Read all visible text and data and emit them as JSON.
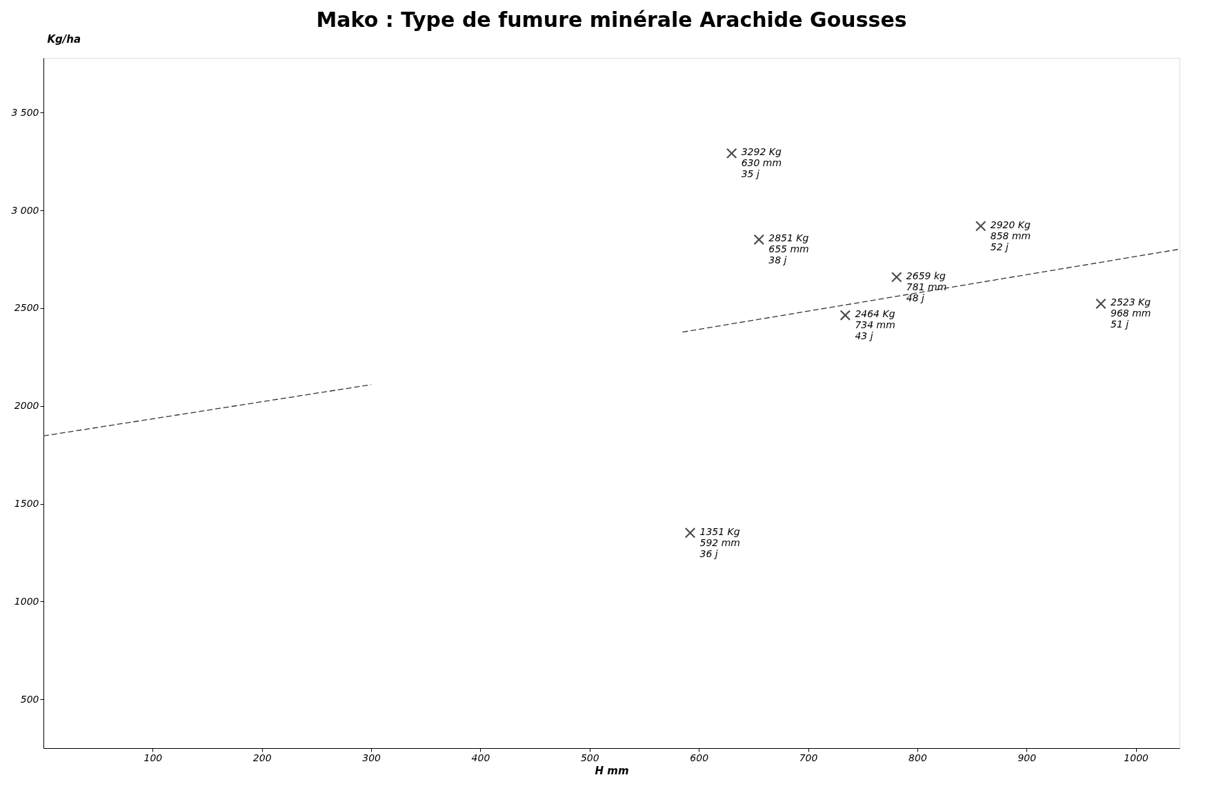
{
  "chart_data": {
    "type": "scatter",
    "title": "Mako : Type de fumure minérale Arachide Gousses",
    "xlabel": "H mm",
    "ylabel": "Kg/ha",
    "xlim": [
      0,
      1040
    ],
    "ylim": [
      250,
      3780
    ],
    "xticks": [
      100,
      200,
      300,
      400,
      500,
      600,
      700,
      800,
      900,
      1000
    ],
    "yticks": [
      500,
      1000,
      1500,
      2000,
      2500,
      {
        "value": 3000,
        "label": "3 000"
      },
      {
        "value": 3500,
        "label": "3 500"
      }
    ],
    "grid": false,
    "series": [
      {
        "marker": "cross",
        "color": "#000000",
        "x": [
          630,
          655,
          781,
          858,
          734,
          968,
          592
        ],
        "values": [
          3292,
          2851,
          2659,
          2920,
          2464,
          2523,
          1351
        ],
        "value_labels": [
          "3292 Kg\n630 mm\n35 j",
          "2851 Kg\n655 mm\n38 j",
          "2659 kg\n781 mm\n48 j",
          "2920 Kg\n858 mm\n52 j",
          "2464 Kg\n734 mm\n43 j",
          "2523 Kg\n968 mm\n51 j",
          "1351 Kg\n592 mm\n36 j"
        ]
      },
      {
        "type": "line",
        "color": "#333333",
        "line_style": "dashed",
        "x": [
          0,
          300
        ],
        "values": [
          1847,
          2109
        ]
      },
      {
        "type": "line",
        "color": "#333333",
        "line_style": "dashed",
        "x": [
          585,
          1039
        ],
        "values": [
          2378,
          2801
        ]
      }
    ]
  }
}
